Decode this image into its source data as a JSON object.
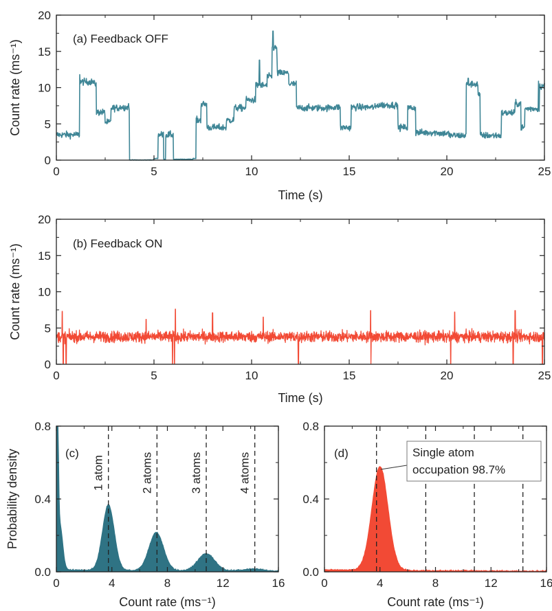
{
  "colors": {
    "teal": "#3f8696",
    "teal_fill": "#2f7384",
    "red": "#f24a35",
    "axis": "#222222"
  },
  "chart_data": [
    {
      "id": "a",
      "type": "line",
      "label": "(a) Feedback OFF",
      "xlabel": "Time (s)",
      "ylabel": "Count rate (ms⁻¹)",
      "xlim": [
        0,
        25
      ],
      "ylim": [
        0,
        20
      ],
      "xticks": [
        0,
        5,
        10,
        15,
        20,
        25
      ],
      "yticks": [
        0,
        5,
        10,
        15,
        20
      ],
      "series": [
        {
          "color": "#3f8696",
          "noise": 0.45,
          "steps": [
            [
              0.0,
              3.5
            ],
            [
              1.2,
              10.8
            ],
            [
              1.9,
              10.5
            ],
            [
              2.05,
              6.6
            ],
            [
              2.5,
              5.2
            ],
            [
              2.8,
              7.2
            ],
            [
              3.2,
              7.3
            ],
            [
              3.75,
              0.0
            ],
            [
              5.0,
              0.2
            ],
            [
              5.2,
              3.5
            ],
            [
              5.5,
              0.1
            ],
            [
              5.6,
              3.5
            ],
            [
              6.0,
              0.1
            ],
            [
              7.0,
              0.2
            ],
            [
              7.15,
              5.5
            ],
            [
              7.4,
              7.7
            ],
            [
              7.7,
              4.5
            ],
            [
              8.7,
              5.5
            ],
            [
              9.1,
              7.2
            ],
            [
              9.7,
              8.3
            ],
            [
              10.2,
              10.3
            ],
            [
              10.8,
              11.5
            ],
            [
              11.05,
              15.5
            ],
            [
              11.3,
              12.0
            ],
            [
              11.9,
              10.5
            ],
            [
              12.3,
              7.2
            ],
            [
              14.0,
              7.3
            ],
            [
              14.55,
              4.5
            ],
            [
              15.1,
              7.3
            ],
            [
              16.4,
              7.6
            ],
            [
              17.5,
              4.5
            ],
            [
              18.0,
              7.2
            ],
            [
              18.4,
              3.8
            ],
            [
              19.6,
              3.7
            ],
            [
              20.1,
              3.4
            ],
            [
              21.0,
              10.5
            ],
            [
              21.6,
              9.0
            ],
            [
              21.7,
              3.4
            ],
            [
              22.8,
              6.5
            ],
            [
              23.5,
              7.8
            ],
            [
              23.8,
              4.5
            ],
            [
              24.0,
              7.1
            ],
            [
              24.75,
              10.2
            ],
            [
              25.0,
              10.2
            ]
          ],
          "spikes": [
            [
              11.1,
              17.8
            ],
            [
              3.7,
              7.8
            ],
            [
              1.2,
              11.8
            ],
            [
              10.4,
              13.8
            ],
            [
              11.3,
              14.0
            ],
            [
              21.1,
              11.3
            ],
            [
              24.7,
              10.9
            ]
          ]
        }
      ]
    },
    {
      "id": "b",
      "type": "line",
      "label": "(b) Feedback ON",
      "xlabel": "Time (s)",
      "ylabel": "Count rate (ms⁻¹)",
      "xlim": [
        0,
        25
      ],
      "ylim": [
        0,
        20
      ],
      "xticks": [
        0,
        5,
        10,
        15,
        20,
        25
      ],
      "yticks": [
        0,
        5,
        10,
        15,
        20
      ],
      "series": [
        {
          "color": "#f24a35",
          "mean": 3.8,
          "noise": 0.75,
          "dips": [
            0.35,
            0.5,
            5.95,
            6.05,
            12.4,
            16.1,
            20.2,
            23.4,
            24.9
          ],
          "spikes": [
            [
              0.3,
              7.3
            ],
            [
              6.1,
              7.6
            ],
            [
              8.0,
              7.1
            ],
            [
              16.1,
              7.4
            ],
            [
              20.4,
              7.2
            ],
            [
              23.5,
              7.4
            ],
            [
              10.6,
              6.5
            ],
            [
              4.6,
              6.2
            ]
          ]
        }
      ]
    },
    {
      "id": "c",
      "type": "area",
      "label": "(c)",
      "xlabel": "Count rate (ms⁻¹)",
      "ylabel": "Probability density",
      "xlim": [
        0,
        16
      ],
      "ylim": [
        0,
        0.8
      ],
      "xticks": [
        0,
        4,
        8,
        12,
        16
      ],
      "yticks": [
        0.0,
        0.4,
        0.8
      ],
      "ytick_labels": [
        "0.0",
        "0.4",
        "0.8"
      ],
      "xtick_labels": [
        "0",
        "4",
        "8",
        "12",
        "16"
      ],
      "fill_color": "#2f7384",
      "peaks": [
        {
          "center": 0.08,
          "amp": 0.76,
          "sigma": 0.07
        },
        {
          "center": 0.25,
          "amp": 0.25,
          "sigma": 0.2
        },
        {
          "center": 3.75,
          "amp": 0.36,
          "sigma": 0.42
        },
        {
          "center": 7.2,
          "amp": 0.21,
          "sigma": 0.52
        },
        {
          "center": 10.8,
          "amp": 0.095,
          "sigma": 0.6
        },
        {
          "center": 14.2,
          "amp": 0.012,
          "sigma": 0.7
        }
      ],
      "baseline": 0.01,
      "vlines": [
        3.75,
        7.25,
        10.8,
        14.3
      ],
      "vline_labels": [
        "1 atom",
        "2 atoms",
        "3 atoms",
        "4 atoms"
      ]
    },
    {
      "id": "d",
      "type": "area",
      "label": "(d)",
      "xlabel": "Count rate (ms⁻¹)",
      "ylabel": "",
      "xlim": [
        0,
        16
      ],
      "ylim": [
        0,
        0.8
      ],
      "xticks": [
        0,
        4,
        8,
        12,
        16
      ],
      "yticks": [
        0.0,
        0.4,
        0.8
      ],
      "ytick_labels": [
        "0.0",
        "0.4",
        "0.8"
      ],
      "xtick_labels": [
        "0",
        "4",
        "8",
        "12",
        "16"
      ],
      "fill_color": "#f24a35",
      "peaks": [
        {
          "center": 4.0,
          "amp": 0.57,
          "sigma": 0.58
        }
      ],
      "baseline": 0.01,
      "vlines": [
        3.75,
        7.3,
        10.8,
        14.3
      ],
      "annotation": {
        "lines": [
          "Single atom",
          "occupation 98.7%"
        ],
        "x": 3.9,
        "y": 0.57
      }
    }
  ]
}
